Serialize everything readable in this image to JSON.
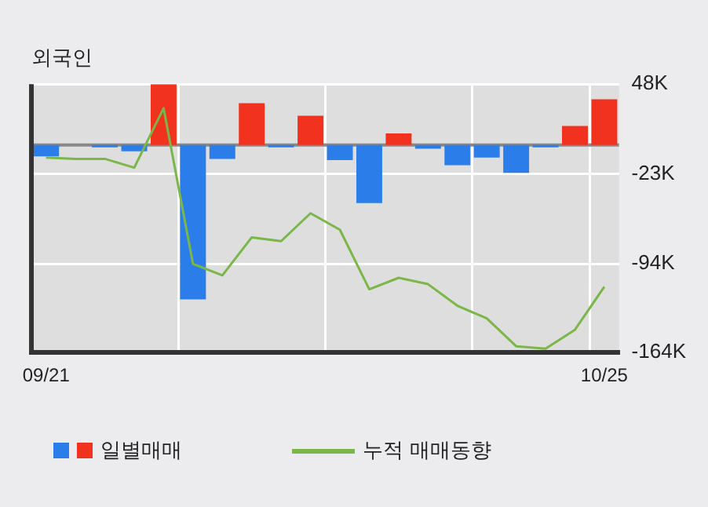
{
  "chart_data": {
    "type": "bar",
    "title": "외국인",
    "categories": [
      "09/21",
      null,
      null,
      null,
      null,
      null,
      null,
      null,
      null,
      null,
      null,
      null,
      null,
      null,
      null,
      null,
      null,
      null,
      null,
      "10/25"
    ],
    "series": [
      {
        "name": "일별매매",
        "colors": [
          "#2b7de9",
          "#2b7de9",
          "#2b7de9",
          "#2b7de9",
          "#f0321e",
          "#2b7de9",
          "#2b7de9",
          "#f0321e",
          "#2b7de9",
          "#f0321e",
          "#2b7de9",
          "#2b7de9",
          "#f0321e",
          "#2b7de9",
          "#2b7de9",
          "#2b7de9",
          "#2b7de9",
          "#2b7de9",
          "#f0321e",
          "#f0321e"
        ],
        "values": [
          -9,
          0,
          -2,
          -5,
          48,
          -122,
          -11,
          33,
          -2,
          23,
          -12,
          -46,
          9,
          -3,
          -16,
          -10,
          -22,
          -2,
          15,
          36
        ]
      },
      {
        "name": "누적 매매동향",
        "type": "line",
        "color": "#7ab648",
        "values": [
          -10,
          -11,
          -11,
          -18,
          29,
          -94,
          -103,
          -73,
          -76,
          -54,
          -67,
          -114,
          -105,
          -110,
          -127,
          -137,
          -159,
          -161,
          -146,
          -112
        ]
      }
    ],
    "ylim": [
      -164,
      48
    ],
    "yticks": [
      {
        "value": 48,
        "label": "48K"
      },
      {
        "value": -23,
        "label": "-23K"
      },
      {
        "value": -94,
        "label": "-94K"
      },
      {
        "value": -164,
        "label": "-164K"
      }
    ],
    "ref_lines": [
      {
        "axis": "y",
        "value": 0,
        "color": "#888888"
      }
    ],
    "grid": true,
    "legend": "bottom",
    "marker": "none"
  }
}
